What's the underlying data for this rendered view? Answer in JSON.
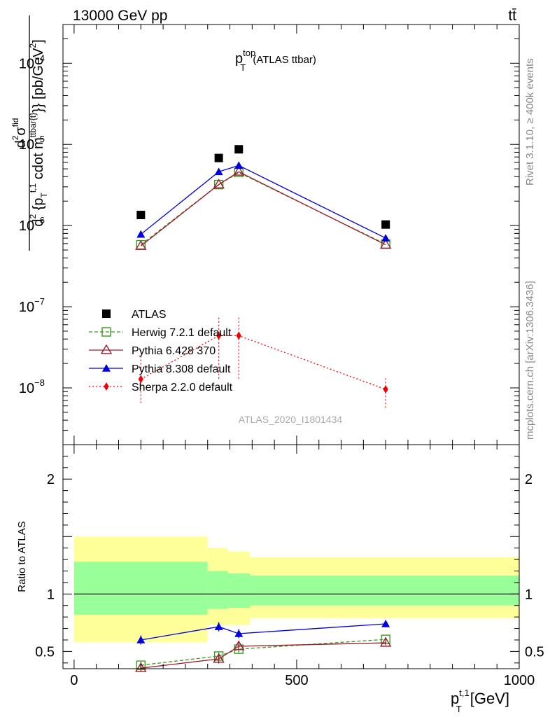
{
  "header": {
    "energy_label": "13000 GeV pp",
    "process_label": "tt̄",
    "side_label_rivet": "Rivet 3.1.10, ≥ 400k events",
    "side_label_site": "mcplots.cern.ch [arXiv:1306.3436]",
    "watermark": "ATLAS_2020_I1801434"
  },
  "chart_data": [
    {
      "type": "line",
      "panel": "main",
      "title": {
        "base": "p",
        "sup": "top",
        "sub": "T",
        "suffix": " (ATLAS ttbar)"
      },
      "ylabel": "d²σ^{fid} / d²{p_T^{t,1} cdot m^{ttbar{t}}} [pb/GeV²]",
      "ylabel_parts": {
        "numerator": "d",
        "numerator_sigma": "σ",
        "numerator_sup": "2",
        "numerator_sigma_sup": "fid",
        "denominator": "d",
        "denominator_sup": "2",
        "denominator_body": " {p",
        "denominator_pt_sub": "T",
        "denominator_pt_sup": "t,1",
        "denominator_mid": " cdot m",
        "denominator_m_sup": "ttbar{t}",
        "denominator_tail": "}} [pb/GeV",
        "denominator_tail_sup": "2",
        "denominator_close": "]"
      },
      "yscale": "log",
      "ylim": [
        2e-09,
        0.0003
      ],
      "xlim": [
        -25,
        1000
      ],
      "yticks": [
        {
          "value": 1e-08,
          "base": "10",
          "exp": "−8"
        },
        {
          "value": 1e-07,
          "base": "10",
          "exp": "−7"
        },
        {
          "value": 1e-06,
          "base": "10",
          "exp": "−6"
        },
        {
          "value": 1e-05,
          "base": "10",
          "exp": "−5"
        },
        {
          "value": 0.0001,
          "base": "10",
          "exp": "−4"
        }
      ],
      "x": [
        150,
        325,
        370,
        700
      ],
      "series": [
        {
          "name": "ATLAS",
          "color": "#000000",
          "marker": "square",
          "dash": "none",
          "values": [
            1.35e-06,
            6.8e-06,
            8.7e-06,
            1.03e-06
          ]
        },
        {
          "name": "Herwig 7.2.1 default",
          "color": "#3a9a1a",
          "marker": "open-square",
          "dash": "5,3",
          "values": [
            5.8e-07,
            3.2e-06,
            4.5e-06,
            5.9e-07
          ]
        },
        {
          "name": "Pythia 6.428 370",
          "color": "#9b1b30",
          "marker": "open-triangle",
          "dash": "none",
          "values": [
            5.6e-07,
            3.2e-06,
            4.6e-06,
            5.8e-07
          ]
        },
        {
          "name": "Pythia 8.308 default",
          "color": "#0000dd",
          "marker": "triangle",
          "dash": "none",
          "values": [
            7.8e-07,
            4.6e-06,
            5.5e-06,
            7e-07
          ]
        },
        {
          "name": "Sherpa 2.2.0 default",
          "color": "#ee0000",
          "marker": "diamond",
          "dash": "2,3",
          "values": [
            1.28e-08,
            4.4e-08,
            4.4e-08,
            9.6e-09
          ],
          "err_low": [
            6.5e-09,
            1.3e-08,
            1.3e-08,
            5.7e-09
          ],
          "err_high": [
            2.5e-08,
            7.5e-08,
            7.5e-08,
            1.35e-08
          ]
        }
      ]
    },
    {
      "type": "line",
      "panel": "ratio",
      "ylabel": "Ratio to ATLAS",
      "xlabel": "p_T^{t,1} [GeV]",
      "xlabel_parts": {
        "base": "p",
        "sub": "T",
        "sup": "t,1",
        "unit": " [GeV]"
      },
      "ylim": [
        0.35,
        2.3
      ],
      "xlim": [
        -25,
        1000
      ],
      "xticks": [
        0,
        500,
        1000
      ],
      "yticks": [
        0.5,
        1,
        2
      ],
      "ytick_labels": [
        "0.5",
        "1",
        "2"
      ],
      "bands": [
        {
          "x0": 0,
          "x1": 300,
          "yellow": [
            0.58,
            1.5
          ],
          "green": [
            0.82,
            1.28
          ]
        },
        {
          "x0": 300,
          "x1": 345,
          "yellow": [
            0.73,
            1.4
          ],
          "green": [
            0.87,
            1.2
          ]
        },
        {
          "x0": 345,
          "x1": 395,
          "yellow": [
            0.73,
            1.37
          ],
          "green": [
            0.88,
            1.18
          ]
        },
        {
          "x0": 395,
          "x1": 1000,
          "yellow": [
            0.79,
            1.32
          ],
          "green": [
            0.9,
            1.16
          ]
        }
      ],
      "x": [
        150,
        325,
        370,
        700
      ],
      "series": [
        {
          "name": "Herwig 7.2.1 default",
          "color": "#3a9a1a",
          "marker": "open-square",
          "dash": "5,3",
          "values": [
            0.38,
            0.46,
            0.52,
            0.605
          ],
          "err": [
            0.03,
            0.03,
            0.03,
            0.02
          ]
        },
        {
          "name": "Pythia 6.428 370",
          "color": "#9b1b30",
          "marker": "open-triangle",
          "dash": "none",
          "values": [
            0.355,
            0.435,
            0.545,
            0.575
          ],
          "err": [
            0.03,
            0.04,
            0.03,
            0.02
          ]
        },
        {
          "name": "Pythia 8.308 default",
          "color": "#0000dd",
          "marker": "triangle",
          "dash": "none",
          "values": [
            0.6,
            0.715,
            0.655,
            0.74
          ],
          "err": [
            0.04,
            0.04,
            0.04,
            0.03
          ]
        }
      ]
    }
  ]
}
